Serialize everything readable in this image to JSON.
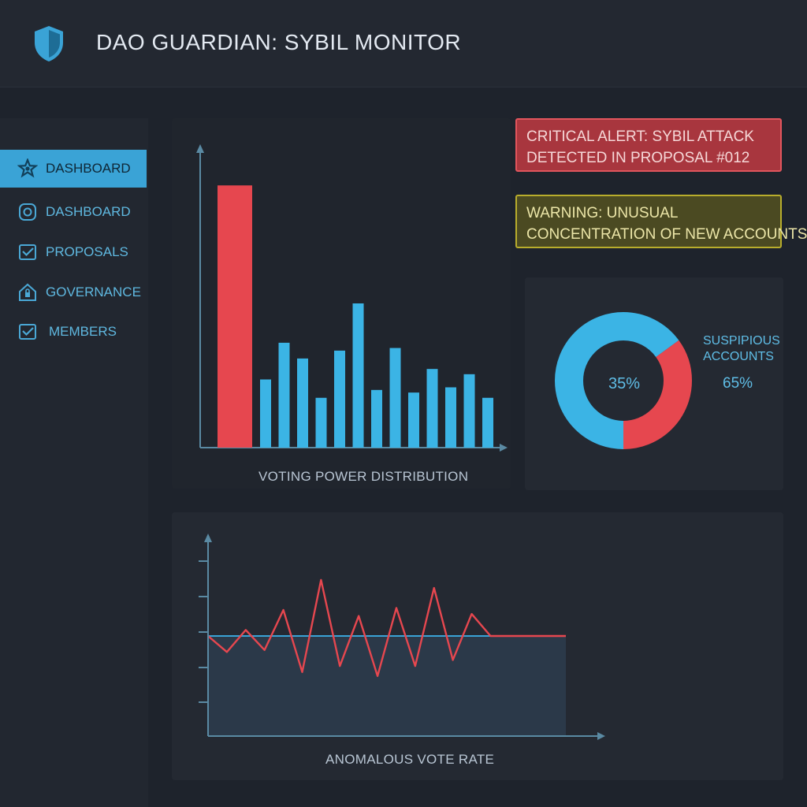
{
  "app": {
    "title": "DAO GUARDIAN: SYBIL MONITOR",
    "logo_icon": "shield-icon"
  },
  "sidebar": {
    "items": [
      {
        "label": "DASHBOARD",
        "icon": "star-gear-icon",
        "active": true
      },
      {
        "label": "DASHBOARD",
        "icon": "circle-target-icon",
        "active": false
      },
      {
        "label": "PROPOSALS",
        "icon": "check-box-icon",
        "active": false
      },
      {
        "label": "GOVERNANCE",
        "icon": "house-lock-icon",
        "active": false
      },
      {
        "label": "MEMBERS",
        "icon": "check-box-icon",
        "active": false
      }
    ]
  },
  "alerts": {
    "critical": {
      "line1": "CRITICAL ALERT: SYBIL ATTACK",
      "line2": "DETECTED IN PROPOSAL #012",
      "color": "#e1555d"
    },
    "warning": {
      "line1": "WARNING: UNUSUAL",
      "line2": "CONCENTRATION OF NEW ACCOUNTS",
      "color": "#b8ad2c"
    }
  },
  "colors": {
    "accent": "#3aa3d6",
    "bar_blue": "#3bb4e5",
    "danger": "#e6474f",
    "warning": "#b8ad2c"
  },
  "chart_data": [
    {
      "type": "bar",
      "title": "VOTING POWER DISTRIBUTION",
      "values": [
        100,
        26,
        40,
        34,
        19,
        37,
        55,
        22,
        38,
        21,
        30,
        23,
        28,
        19
      ],
      "highlight_index": 0,
      "ylim": [
        0,
        110
      ]
    },
    {
      "type": "pie",
      "slices": [
        {
          "label": "35%",
          "value": 35,
          "color": "#e6474f"
        },
        {
          "label": "65%",
          "value": 65,
          "color": "#3bb4e5"
        }
      ],
      "legend": "SUSPIPIOUS ACCOUNTS",
      "legend_lines": [
        "SUSPIPIOUS",
        "ACCOUNTS"
      ],
      "value_label": "65%",
      "center_label": "35%"
    },
    {
      "type": "line",
      "title": "ANOMALOUS VOTE RATE",
      "baseline": 50,
      "values": [
        50,
        42,
        53,
        43,
        63,
        32,
        78,
        35,
        60,
        30,
        64,
        35,
        74,
        38,
        61,
        50,
        50,
        50,
        50,
        50
      ],
      "ylim": [
        0,
        100
      ]
    }
  ]
}
